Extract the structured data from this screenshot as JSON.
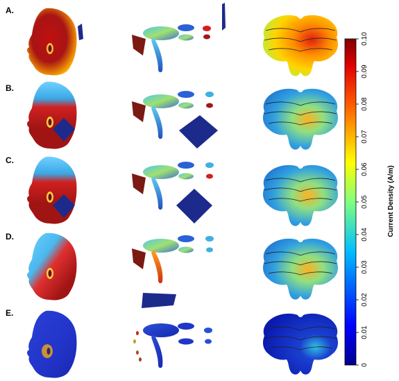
{
  "rows": [
    {
      "label": "A.",
      "head_color": "#a01818",
      "model_heat": "high"
    },
    {
      "label": "B.",
      "head_color": "#a81d1d",
      "model_heat": "mid"
    },
    {
      "label": "C.",
      "head_color": "#a81d1d",
      "model_heat": "mid"
    },
    {
      "label": "D.",
      "head_color": "#b02a2a",
      "model_heat": "mid"
    },
    {
      "label": "E.",
      "head_color": "#2438c8",
      "model_heat": "low"
    }
  ],
  "colorbar": {
    "label": "Current Density (A/m)",
    "ticks": [
      "0",
      "0.01",
      "0.02",
      "0.03",
      "0.04",
      "0.05",
      "0.06",
      "0.07",
      "0.08",
      "0.09",
      "0.10"
    ],
    "colors": [
      "#00008f",
      "#0000ff",
      "#007fff",
      "#00ffff",
      "#7fff7f",
      "#ffff00",
      "#ff7f00",
      "#ff0000",
      "#7f0000"
    ]
  },
  "colors": {
    "electrode": "#1c2a8c",
    "wire": "#7a1a12"
  }
}
